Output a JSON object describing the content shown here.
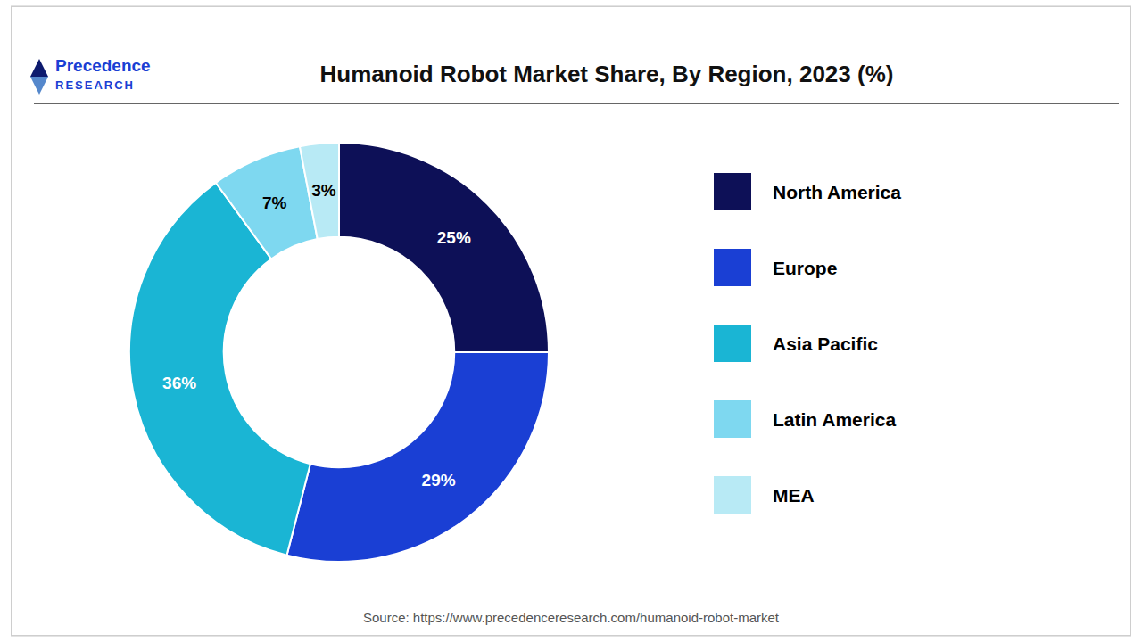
{
  "chart_data": {
    "type": "pie",
    "title": "Humanoid Robot Market Share, By Region, 2023 (%)",
    "categories": [
      "North America",
      "Europe",
      "Asia Pacific",
      "Latin America",
      "MEA"
    ],
    "values": [
      25,
      29,
      36,
      7,
      3
    ],
    "value_labels": [
      "25%",
      "29%",
      "36%",
      "7%",
      "3%"
    ],
    "colors": [
      "#0d1057",
      "#1a3fd4",
      "#1ab5d4",
      "#7ed8f0",
      "#b8eaf5"
    ],
    "data_labels": true,
    "legend": "right",
    "annotations": [
      "Source: https://www.precedenceresearch.com/humanoid-robot-market",
      "Precedence",
      "RESEARCH"
    ]
  }
}
